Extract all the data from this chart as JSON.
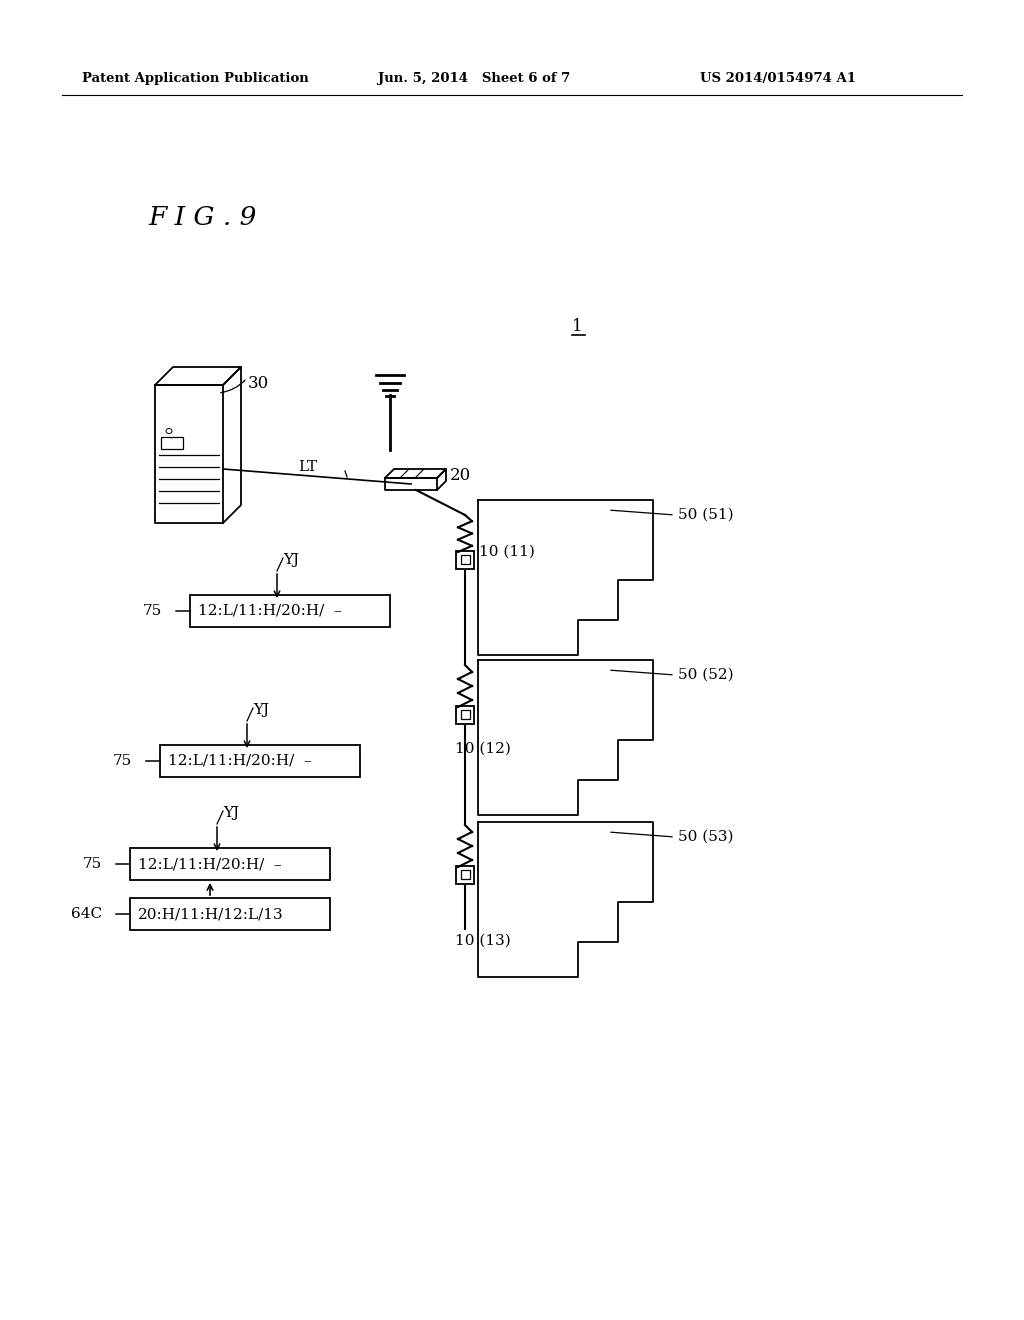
{
  "bg_color": "#ffffff",
  "header_left": "Patent Application Publication",
  "header_mid": "Jun. 5, 2014   Sheet 6 of 7",
  "header_right": "US 2014/0154974 A1",
  "fig_label": "F I G . 9",
  "label_1": "1",
  "label_30": "30",
  "label_LT": "LT",
  "label_20": "20",
  "label_YJ": "YJ",
  "label_75": "75",
  "label_64C": "64C",
  "box1_text": "12:L/11:H/20:H/  –",
  "box2_text": "12:L/11:H/20:H/  –",
  "box3_text": "12:L/11:H/20:H/  –",
  "box4_text": "20:H/11:H/12:L/13",
  "label_10_11": "10 (11)",
  "label_10_12": "10 (12)",
  "label_10_13": "10 (13)",
  "label_50_51": "50 (51)",
  "label_50_52": "50 (52)",
  "label_50_53": "50 (53)"
}
